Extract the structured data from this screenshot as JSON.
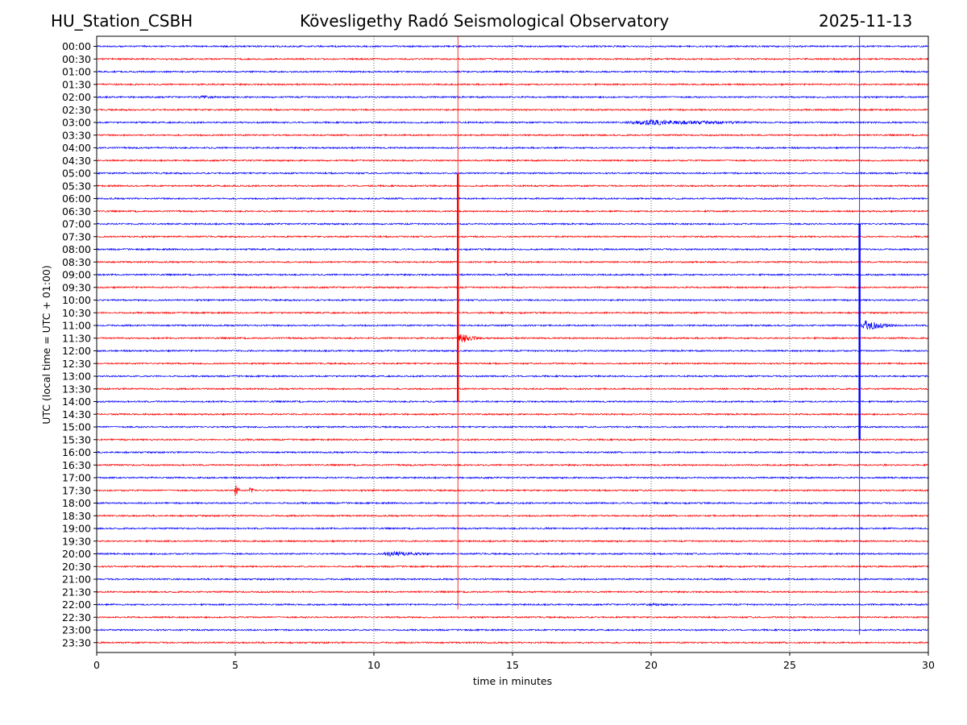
{
  "header": {
    "station": "HU_Station_CSBH",
    "observatory": "Kövesligethy Radó Seismological Observatory",
    "date": "2025-11-13"
  },
  "chart_data": {
    "type": "helicorder",
    "xlabel": "time in minutes",
    "ylabel": "UTC (local time = UTC + 01:00)",
    "xlim": [
      0,
      30
    ],
    "x_ticks": [
      0,
      5,
      10,
      15,
      20,
      25,
      30
    ],
    "grid": "vertical dotted lines at x ticks",
    "row_labels": [
      "00:00",
      "00:30",
      "01:00",
      "01:30",
      "02:00",
      "02:30",
      "03:00",
      "03:30",
      "04:00",
      "04:30",
      "05:00",
      "05:30",
      "06:00",
      "06:30",
      "07:00",
      "07:30",
      "08:00",
      "08:30",
      "09:00",
      "09:30",
      "10:00",
      "10:30",
      "11:00",
      "11:30",
      "12:00",
      "12:30",
      "13:00",
      "13:30",
      "14:00",
      "14:30",
      "15:00",
      "15:30",
      "16:00",
      "16:30",
      "17:00",
      "17:30",
      "18:00",
      "18:30",
      "19:00",
      "19:30",
      "20:00",
      "20:30",
      "21:00",
      "21:30",
      "22:00",
      "22:30",
      "23:00",
      "23:30"
    ],
    "trace_colors": [
      "#0000ff",
      "#ff0000"
    ],
    "noise_amplitude": 0.12,
    "events": [
      {
        "row": 4,
        "start_min": 3.6,
        "end_min": 4.9,
        "amp": 0.35
      },
      {
        "row": 6,
        "start_min": 18.8,
        "end_min": 26.0,
        "amp": 0.55
      },
      {
        "row": 12,
        "start_min": 29.3,
        "end_min": 30.0,
        "amp": 0.2
      },
      {
        "row": 18,
        "start_min": 4.0,
        "end_min": 4.3,
        "amp": 0.25
      },
      {
        "row": 18,
        "start_min": 14.7,
        "end_min": 15.0,
        "amp": 0.35
      },
      {
        "row": 19,
        "start_min": 1.2,
        "end_min": 1.8,
        "amp": 0.2
      },
      {
        "row": 19,
        "start_min": 21.9,
        "end_min": 22.2,
        "amp": 0.2
      },
      {
        "row": 22,
        "start_min": 27.5,
        "end_min": 29.0,
        "amp": 1.0
      },
      {
        "row": 23,
        "start_min": 13.0,
        "end_min": 14.0,
        "amp": 1.0
      },
      {
        "row": 26,
        "start_min": 9.0,
        "end_min": 9.3,
        "amp": 0.2
      },
      {
        "row": 32,
        "start_min": 10.0,
        "end_min": 10.3,
        "amp": 0.3
      },
      {
        "row": 33,
        "start_min": 28.3,
        "end_min": 28.9,
        "amp": 0.25
      },
      {
        "row": 35,
        "start_min": 4.95,
        "end_min": 5.2,
        "amp": 1.4
      },
      {
        "row": 35,
        "start_min": 5.5,
        "end_min": 5.75,
        "amp": 1.0
      },
      {
        "row": 38,
        "start_min": 15.1,
        "end_min": 15.5,
        "amp": 0.2
      },
      {
        "row": 38,
        "start_min": 16.1,
        "end_min": 16.6,
        "amp": 0.3
      },
      {
        "row": 40,
        "start_min": 10.2,
        "end_min": 12.8,
        "amp": 0.55
      },
      {
        "row": 40,
        "start_min": 13.5,
        "end_min": 14.5,
        "amp": 0.2
      },
      {
        "row": 44,
        "start_min": 19.4,
        "end_min": 22.8,
        "amp": 0.25
      }
    ],
    "spikes": [
      {
        "minute": 13.03,
        "from_row": 0,
        "to_row": 44,
        "color": "#ff0000",
        "core_from_row": 10,
        "core_to_row": 28
      },
      {
        "minute": 27.52,
        "from_row": 0,
        "to_row": 46,
        "color": "#0000ff",
        "core_from_row": 14,
        "core_to_row": 31
      }
    ]
  }
}
